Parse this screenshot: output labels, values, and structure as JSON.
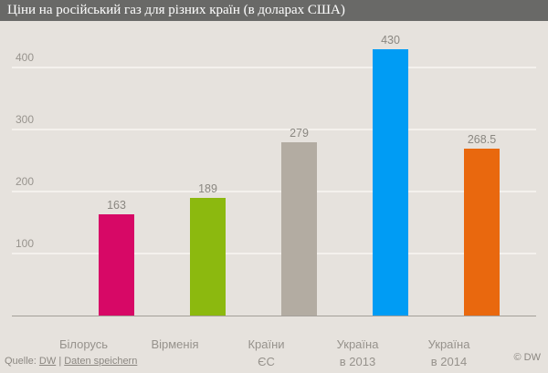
{
  "header": {
    "title": "Ціни на російський газ для різних країн (в доларах США)"
  },
  "chart_data": {
    "type": "bar",
    "title": "Ціни на російський газ для різних країн (в доларах США)",
    "categories": [
      "Білорусь",
      "Вірменія",
      "Країни\nЄС",
      "Україна\nв 2013",
      "Україна\nв 2014"
    ],
    "values": [
      163,
      189,
      279,
      430,
      268.5
    ],
    "bar_colors": [
      "#d70866",
      "#8cb90f",
      "#b3aca2",
      "#009cf4",
      "#e9680e"
    ],
    "xlabel": "",
    "ylabel": "",
    "ylim": [
      0,
      440
    ],
    "yticks": [
      100,
      200,
      300,
      400
    ],
    "grid": true,
    "legend": "none"
  },
  "footer": {
    "source_prefix": "Quelle:",
    "source_link": "DW",
    "separator": "|",
    "save_link": "Daten speichern",
    "copyright": "© DW"
  }
}
